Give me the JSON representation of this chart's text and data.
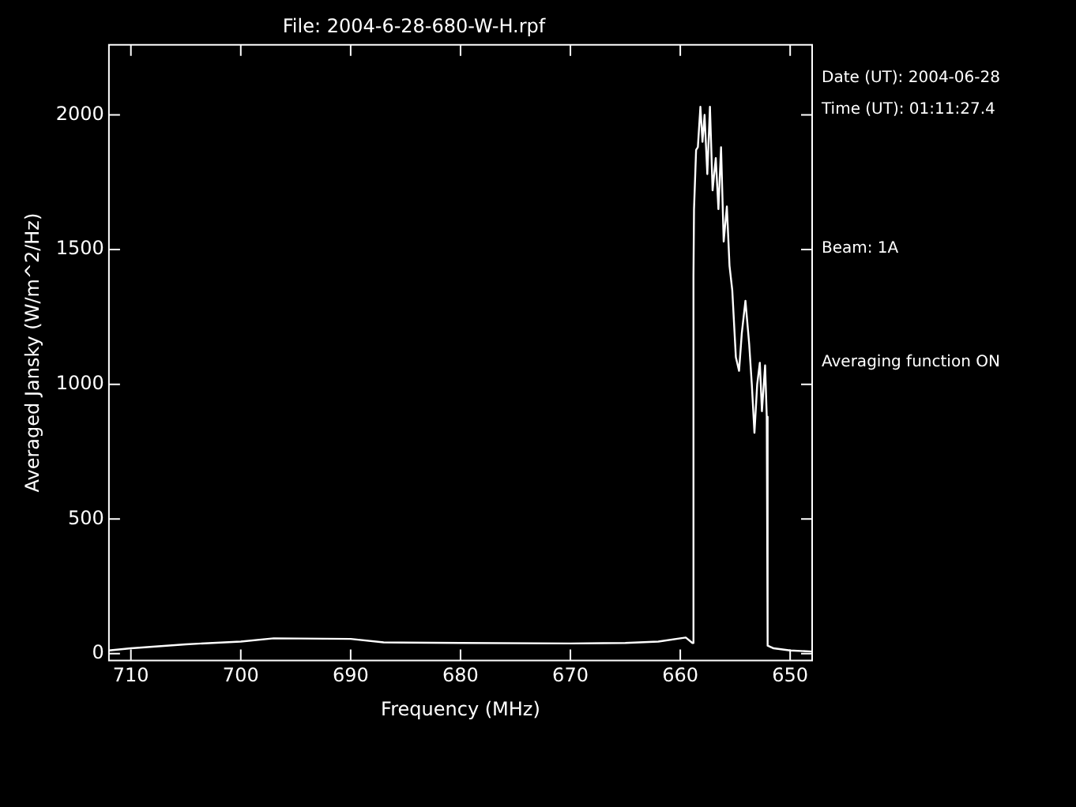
{
  "chart_data": {
    "type": "line",
    "title": "File: 2004-6-28-680-W-H.rpf",
    "xlabel": "Frequency (MHz)",
    "ylabel": "Averaged Jansky (W/m^2/Hz)",
    "annotations": [
      "Date (UT): 2004-06-28",
      "Time (UT): 01:11:27.4",
      "Beam: 1A",
      "Averaging function ON"
    ],
    "xlim": [
      712,
      648
    ],
    "xticks": [
      710,
      700,
      690,
      680,
      670,
      660,
      650
    ],
    "ylim": [
      -25,
      2260
    ],
    "yticks": [
      0,
      500,
      1000,
      1500,
      2000
    ],
    "grid": false,
    "legend": false,
    "marker": "none",
    "line_style": "solid",
    "x": [
      712,
      710,
      705,
      700,
      697,
      690,
      687,
      680,
      670,
      665,
      662,
      659.5,
      658.9,
      658.8,
      658.75,
      658.56,
      658.4,
      658.17,
      657.98,
      657.79,
      657.54,
      657.3,
      657.06,
      656.77,
      656.53,
      656.29,
      656.05,
      655.76,
      655.52,
      655.27,
      654.94,
      654.65,
      654.4,
      654.07,
      653.73,
      653.49,
      653.25,
      653.0,
      652.76,
      652.57,
      652.28,
      652.13,
      652.05,
      651.5,
      650,
      648
    ],
    "series": [
      {
        "color": "#ffffff",
        "values": [
          12,
          20,
          35,
          45,
          57,
          55,
          42,
          40,
          38,
          40,
          45,
          60,
          40,
          1400,
          1650,
          1870,
          1880,
          2030,
          1900,
          2000,
          1780,
          2030,
          1720,
          1840,
          1650,
          1880,
          1530,
          1660,
          1440,
          1350,
          1100,
          1050,
          1190,
          1310,
          1150,
          1000,
          820,
          1000,
          1080,
          900,
          1070,
          880,
          30,
          20,
          12,
          8
        ]
      }
    ]
  }
}
